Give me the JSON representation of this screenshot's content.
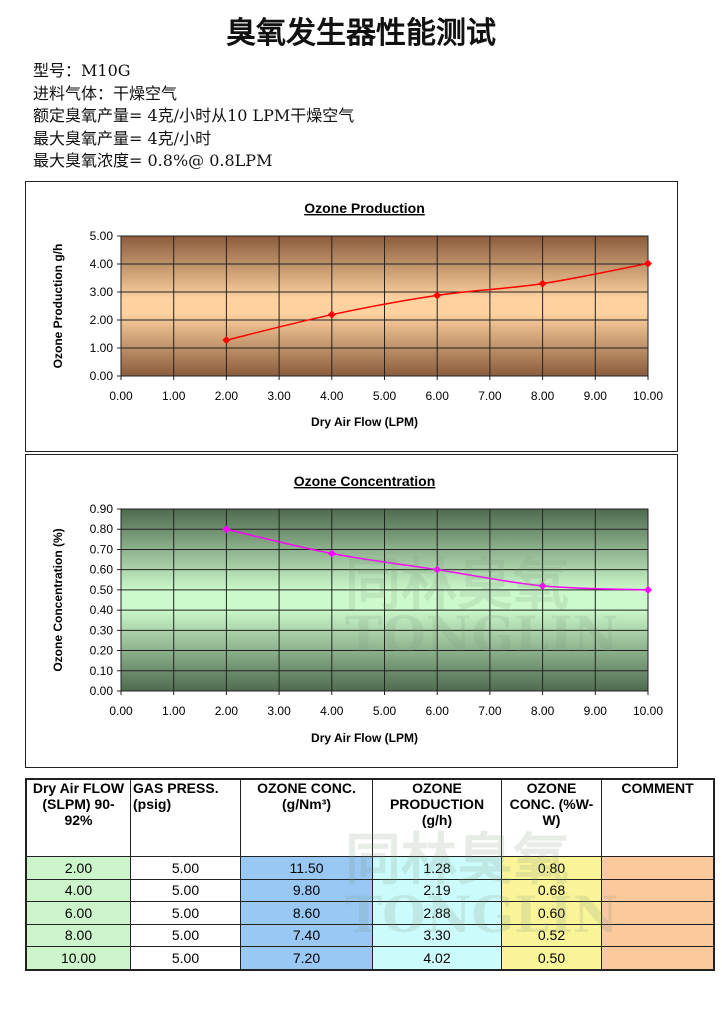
{
  "title": "臭氧发生器性能测试",
  "specs": [
    "型号：M10G",
    "进料气体：干燥空气",
    "额定臭氧产量= 4克/小时从10 LPM干燥空气",
    "最大臭氧产量= 4克/小时",
    "最大臭氧浓度= 0.8%@ 0.8LPM"
  ],
  "watermark": {
    "cn": "同林臭氧",
    "en": "TONGLIN"
  },
  "chart_data": [
    {
      "type": "line",
      "title": "Ozone Production",
      "xlabel": "Dry Air Flow (LPM)",
      "ylabel": "Ozone Production g/h",
      "x": [
        2,
        4,
        6,
        8,
        10
      ],
      "y": [
        1.28,
        2.19,
        2.88,
        3.3,
        4.02
      ],
      "xlim": [
        0,
        10
      ],
      "ylim": [
        0,
        5
      ],
      "xticks": [
        "0.00",
        "1.00",
        "2.00",
        "3.00",
        "4.00",
        "5.00",
        "6.00",
        "7.00",
        "8.00",
        "9.00",
        "10.00"
      ],
      "yticks": [
        "0.00",
        "1.00",
        "2.00",
        "3.00",
        "4.00",
        "5.00"
      ],
      "grid": true,
      "color": "#ff0000",
      "bg": [
        "#8a5c3c",
        "#ffd2a0"
      ]
    },
    {
      "type": "line",
      "title": "Ozone Concentration",
      "xlabel": "Dry Air Flow (LPM)",
      "ylabel": "Ozone Concentration (%)",
      "x": [
        2,
        4,
        6,
        8,
        10
      ],
      "y": [
        0.8,
        0.68,
        0.6,
        0.52,
        0.5
      ],
      "xlim": [
        0,
        10
      ],
      "ylim": [
        0,
        0.9
      ],
      "xticks": [
        "0.00",
        "1.00",
        "2.00",
        "3.00",
        "4.00",
        "5.00",
        "6.00",
        "7.00",
        "8.00",
        "9.00",
        "10.00"
      ],
      "yticks": [
        "0.00",
        "0.10",
        "0.20",
        "0.30",
        "0.40",
        "0.50",
        "0.60",
        "0.70",
        "0.80",
        "0.90"
      ],
      "grid": true,
      "color": "#ff00ff",
      "bg": [
        "#4f6a4f",
        "#ccfacc"
      ]
    }
  ],
  "table": {
    "headers": [
      "Dry Air FLOW (SLPM) 90-92%",
      "GAS PRESS. (psig)",
      "OZONE CONC. (g/Nm³)",
      "OZONE PRODUCTION (g/h)",
      "OZONE CONC. (%W-W)",
      "COMMENT"
    ],
    "rows": [
      [
        "2.00",
        "5.00",
        "11.50",
        "1.28",
        "0.80",
        ""
      ],
      [
        "4.00",
        "5.00",
        "9.80",
        "2.19",
        "0.68",
        ""
      ],
      [
        "6.00",
        "5.00",
        "8.60",
        "2.88",
        "0.60",
        ""
      ],
      [
        "8.00",
        "5.00",
        "7.40",
        "3.30",
        "0.52",
        ""
      ],
      [
        "10.00",
        "5.00",
        "7.20",
        "4.02",
        "0.50",
        ""
      ]
    ]
  }
}
